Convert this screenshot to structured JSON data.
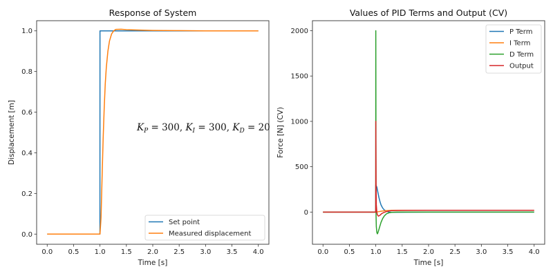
{
  "chart_data": [
    {
      "type": "line",
      "title": "Response of System",
      "xlabel": "Time [s]",
      "ylabel": "Displacement [m]",
      "xlim": [
        -0.2,
        4.2
      ],
      "ylim": [
        -0.05,
        1.05
      ],
      "xticks": [
        0.0,
        0.5,
        1.0,
        1.5,
        2.0,
        2.5,
        3.0,
        3.5,
        4.0
      ],
      "xtick_labels": [
        "0.0",
        "0.5",
        "1.0",
        "1.5",
        "2.0",
        "2.5",
        "3.0",
        "3.5",
        "4.0"
      ],
      "yticks": [
        0.0,
        0.2,
        0.4,
        0.6,
        0.8,
        1.0
      ],
      "ytick_labels": [
        "0.0",
        "0.2",
        "0.4",
        "0.6",
        "0.8",
        "1.0"
      ],
      "grid": false,
      "legend_position": "lower-right",
      "annotation": {
        "parts": [
          {
            "k": "K",
            "sub": "P",
            "val": "300"
          },
          {
            "k": "K",
            "sub": "I",
            "val": "300"
          },
          {
            "k": "K",
            "sub": "D",
            "val": "20"
          }
        ],
        "x": 2.7,
        "y": 0.53
      },
      "series": [
        {
          "name": "Set point",
          "color": "#1f77b4",
          "x": [
            0.0,
            0.999,
            1.0,
            4.0
          ],
          "y": [
            0.0,
            0.0,
            1.0,
            1.0
          ]
        },
        {
          "name": "Measured displacement",
          "color": "#ff7f0e",
          "x": [
            0.0,
            1.0,
            1.02,
            1.04,
            1.06,
            1.08,
            1.1,
            1.12,
            1.15,
            1.18,
            1.22,
            1.26,
            1.3,
            1.4,
            1.5,
            1.7,
            2.0,
            2.5,
            3.0,
            4.0
          ],
          "y": [
            0.0,
            0.0,
            0.08,
            0.28,
            0.47,
            0.62,
            0.74,
            0.82,
            0.9,
            0.95,
            0.985,
            1.0,
            1.007,
            1.008,
            1.006,
            1.004,
            1.002,
            1.001,
            1.0,
            1.0
          ]
        }
      ]
    },
    {
      "type": "line",
      "title": "Values of PID Terms and Output (CV)",
      "xlabel": "Time [s]",
      "ylabel": "Force [N] (CV)",
      "xlim": [
        -0.2,
        4.2
      ],
      "ylim": [
        -355,
        2110
      ],
      "xticks": [
        0.0,
        0.5,
        1.0,
        1.5,
        2.0,
        2.5,
        3.0,
        3.5,
        4.0
      ],
      "xtick_labels": [
        "0.0",
        "0.5",
        "1.0",
        "1.5",
        "2.0",
        "2.5",
        "3.0",
        "3.5",
        "4.0"
      ],
      "yticks": [
        0,
        500,
        1000,
        1500,
        2000
      ],
      "ytick_labels": [
        "0",
        "500",
        "1000",
        "1500",
        "2000"
      ],
      "grid": false,
      "legend_position": "upper-right",
      "series": [
        {
          "name": "P Term",
          "color": "#1f77b4",
          "x": [
            0.0,
            0.999,
            1.0,
            1.02,
            1.04,
            1.06,
            1.08,
            1.1,
            1.13,
            1.16,
            1.2,
            1.25,
            1.3,
            1.4,
            1.6,
            2.0,
            4.0
          ],
          "y": [
            0,
            0,
            300,
            276,
            216,
            159,
            114,
            78,
            45,
            24,
            9,
            0,
            -2,
            -2,
            -1,
            0,
            0
          ]
        },
        {
          "name": "I Term",
          "color": "#ff7f0e",
          "x": [
            0.0,
            1.0,
            1.05,
            1.1,
            1.15,
            1.2,
            1.3,
            1.5,
            2.0,
            4.0
          ],
          "y": [
            0,
            0,
            4,
            9,
            13,
            16,
            19,
            20,
            20,
            20
          ]
        },
        {
          "name": "D Term",
          "color": "#2ca02c",
          "x": [
            0.0,
            0.999,
            1.0,
            1.005,
            1.01,
            1.02,
            1.03,
            1.04,
            1.06,
            1.08,
            1.1,
            1.13,
            1.16,
            1.2,
            1.25,
            1.3,
            1.4,
            1.6,
            2.0,
            4.0
          ],
          "y": [
            0,
            0,
            2000,
            -40,
            -160,
            -225,
            -240,
            -228,
            -190,
            -150,
            -112,
            -72,
            -44,
            -20,
            -8,
            -3,
            0,
            0,
            0,
            0
          ]
        },
        {
          "name": "Output",
          "color": "#d62728",
          "x": [
            0.0,
            0.999,
            1.0,
            1.005,
            1.01,
            1.02,
            1.03,
            1.05,
            1.08,
            1.11,
            1.15,
            1.2,
            1.25,
            1.3,
            1.4,
            1.6,
            2.0,
            4.0
          ],
          "y": [
            0,
            0,
            1000,
            320,
            80,
            0,
            -30,
            -45,
            -35,
            -18,
            -5,
            5,
            12,
            16,
            18,
            19,
            20,
            20
          ]
        }
      ]
    }
  ]
}
